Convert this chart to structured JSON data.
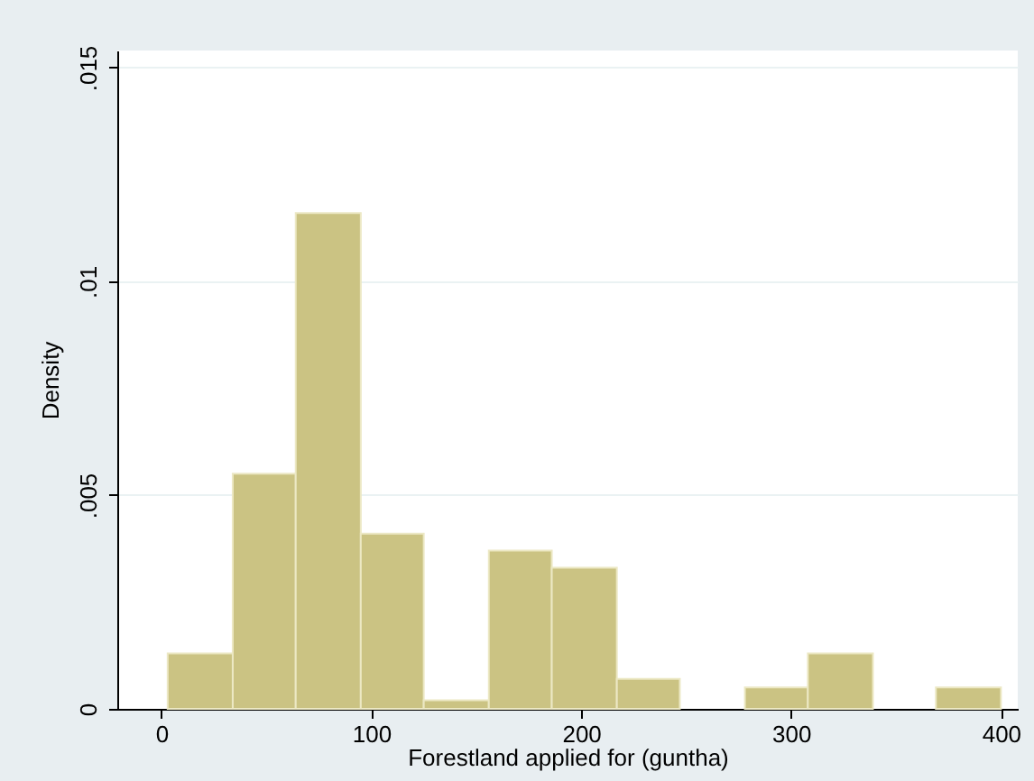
{
  "chart_data": {
    "type": "histogram",
    "xlabel": "Forestland applied for (guntha)",
    "ylabel": "Density",
    "bins": [
      3,
      34,
      64,
      95,
      125,
      156,
      186,
      217,
      247,
      278,
      308,
      339,
      369,
      400
    ],
    "values": [
      0.0013,
      0.0055,
      0.0116,
      0.0041,
      0.0002,
      0.0037,
      0.0033,
      0.0007,
      0,
      0.0005,
      0.0013,
      0,
      0.0005
    ],
    "color": "#cbc383",
    "xlim": [
      -21,
      408
    ],
    "ylim": [
      0,
      0.0154
    ],
    "xticks": [
      0,
      100,
      200,
      300,
      400
    ],
    "yticks": [
      0,
      {
        "value": 0.005,
        "label": ".005"
      },
      {
        "value": 0.01,
        "label": ".01"
      },
      {
        "value": 0.015,
        "label": ".015"
      }
    ],
    "grid": "y"
  }
}
